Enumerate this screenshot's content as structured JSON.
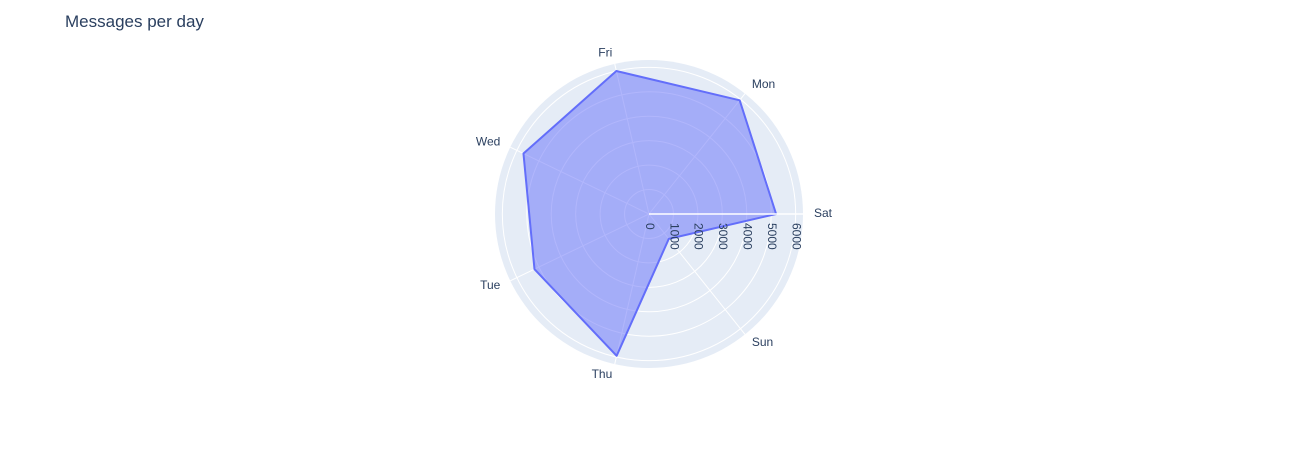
{
  "chart_data": {
    "type": "polar",
    "title": "Messages per day",
    "theta_direction": "counterclockwise",
    "categories": [
      "Sat",
      "Mon",
      "Fri",
      "Wed",
      "Tue",
      "Thu",
      "Sun"
    ],
    "values": [
      5200,
      5950,
      6000,
      5700,
      5200,
      5950,
      1300
    ],
    "radial_range": [
      0,
      6300
    ],
    "radial_ticks": [
      "0",
      "1000",
      "2000",
      "3000",
      "4000",
      "5000",
      "6000"
    ],
    "grid": true,
    "legend": "none",
    "colors": {
      "fill": "#636efa",
      "line": "#636efa",
      "polar_bg": "#e5ecf6",
      "grid": "#ffffff",
      "text": "#2a3f5f"
    }
  }
}
